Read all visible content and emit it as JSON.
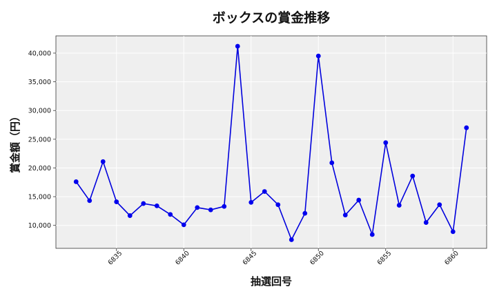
{
  "chart_data": {
    "type": "line",
    "title": "ボックスの賞金推移",
    "xlabel": "抽選回号",
    "ylabel": "賞金額（円）",
    "xlim": [
      6830.5,
      6862.5
    ],
    "ylim": [
      6000,
      43000
    ],
    "xticks": [
      6835,
      6840,
      6845,
      6850,
      6855,
      6860
    ],
    "yticks": [
      10000,
      15000,
      20000,
      25000,
      30000,
      35000,
      40000
    ],
    "ytick_labels": [
      "10,000",
      "15,000",
      "20,000",
      "25,000",
      "30,000",
      "35,000",
      "40,000"
    ],
    "grid": true,
    "background": "#efefef",
    "line_color": "#0000dd",
    "marker_color": "#0000ee",
    "series": [
      {
        "x": [
          6832,
          6833,
          6834,
          6835,
          6836,
          6837,
          6838,
          6839,
          6840,
          6841,
          6842,
          6843,
          6844,
          6845,
          6846,
          6847,
          6848,
          6849,
          6850,
          6851,
          6852,
          6853,
          6854,
          6855,
          6856,
          6857,
          6858,
          6859,
          6860,
          6861
        ],
        "values": [
          17600,
          14300,
          21100,
          14100,
          11700,
          13800,
          13400,
          11900,
          10100,
          13100,
          12700,
          13300,
          41200,
          14000,
          15900,
          13600,
          7500,
          12100,
          39500,
          20900,
          11800,
          14400,
          8400,
          24400,
          13500,
          18600,
          10500,
          13600,
          8900,
          27000
        ]
      }
    ]
  }
}
